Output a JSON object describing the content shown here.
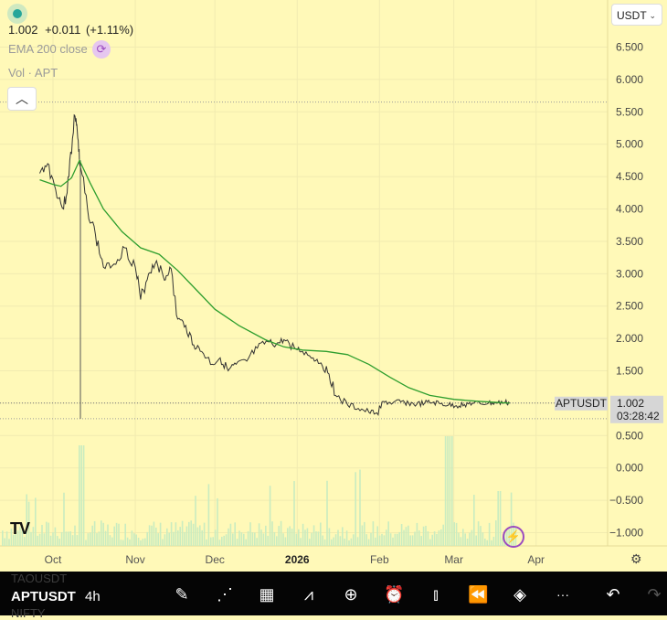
{
  "legend": {
    "price": "1.002",
    "change": "+0.011",
    "change_pct": "(+1.11%)",
    "ema_label": "EMA 200 close",
    "vol_label": "Vol · APT"
  },
  "currency": "USDT",
  "last_price_tag": {
    "symbol": "APTUSDT",
    "price": "1.002",
    "countdown": "03:28:42"
  },
  "colors": {
    "background": "#fff9b8",
    "price_line": "#333333",
    "ema_line": "#2e9e2e",
    "volume": "#bfe6b8",
    "toolbar": "#050505"
  },
  "chart_data": {
    "type": "line",
    "series": [
      {
        "name": "APTUSDT",
        "x": [
          "Sep 27",
          "Sep 30",
          "Oct 2",
          "Oct 5",
          "Oct 7",
          "Oct 9",
          "Oct 10",
          "Oct 11",
          "Oct 14",
          "Oct 17",
          "Oct 20",
          "Oct 24",
          "Oct 28",
          "Nov 1",
          "Nov 3",
          "Nov 6",
          "Nov 9",
          "Nov 12",
          "Nov 14",
          "Nov 17",
          "Nov 20",
          "Nov 23",
          "Nov 26",
          "Nov 30",
          "Dec 3",
          "Dec 6",
          "Dec 9",
          "Dec 13",
          "Dec 17",
          "Dec 21",
          "Dec 24",
          "Dec 27",
          "Dec 31",
          "Jan 3",
          "Jan 7",
          "Jan 10",
          "Jan 13",
          "Jan 16",
          "Jan 20",
          "Jan 24",
          "Jan 28",
          "Jan 31",
          "Feb 3",
          "Feb 6",
          "Feb 9",
          "Feb 12",
          "Feb 15",
          "Feb 18",
          "Feb 21",
          "Feb 24",
          "Feb 27",
          "Mar 2",
          "Mar 5",
          "Mar 8",
          "Mar 11",
          "Mar 14",
          "Mar 17",
          "Mar 20",
          "Mar 22"
        ],
        "values": [
          4.55,
          4.7,
          4.3,
          4.0,
          4.5,
          5.45,
          5.3,
          4.7,
          4.0,
          3.6,
          3.1,
          3.15,
          3.4,
          3.1,
          2.6,
          3.0,
          3.2,
          2.9,
          3.1,
          2.3,
          2.2,
          1.9,
          1.8,
          1.6,
          1.7,
          1.5,
          1.6,
          1.65,
          1.85,
          1.95,
          1.9,
          1.98,
          1.85,
          1.8,
          1.7,
          1.62,
          1.45,
          1.1,
          0.97,
          0.92,
          0.86,
          0.85,
          1.02,
          1.0,
          1.02,
          1.0,
          0.98,
          1.0,
          1.01,
          0.99,
          0.97,
          0.96,
          0.98,
          1.0,
          0.99,
          1.0,
          1.0,
          1.01,
          1.002
        ]
      },
      {
        "name": "EMA 200 close",
        "x": [
          "Sep 27",
          "Oct 1",
          "Oct 4",
          "Oct 8",
          "Oct 11",
          "Oct 15",
          "Oct 20",
          "Oct 27",
          "Nov 3",
          "Nov 10",
          "Nov 17",
          "Nov 24",
          "Dec 1",
          "Dec 10",
          "Dec 20",
          "Dec 27",
          "Jan 3",
          "Jan 12",
          "Jan 20",
          "Jan 28",
          "Feb 5",
          "Feb 12",
          "Feb 20",
          "Mar 1",
          "Mar 10",
          "Mar 18",
          "Mar 22"
        ],
        "values": [
          4.45,
          4.38,
          4.35,
          4.48,
          4.75,
          4.4,
          4.0,
          3.65,
          3.4,
          3.3,
          3.05,
          2.75,
          2.45,
          2.2,
          1.98,
          1.87,
          1.82,
          1.8,
          1.75,
          1.6,
          1.4,
          1.24,
          1.12,
          1.06,
          1.03,
          1.01,
          1.0
        ]
      }
    ],
    "x_ticks": [
      "Oct",
      "Nov",
      "Dec",
      "2026",
      "Feb",
      "Mar",
      "Apr"
    ],
    "y_ticks": [
      "6.500",
      "6.000",
      "5.500",
      "5.000",
      "4.500",
      "4.000",
      "3.500",
      "3.000",
      "2.500",
      "2.000",
      "1.500",
      "1.000",
      "0.500",
      "0.000",
      "−0.500",
      "−1.000"
    ],
    "ylim": [
      -1.1,
      6.7
    ],
    "grid": true,
    "legend": "top-left",
    "reference_lines": {
      "high": 5.65,
      "low": 0.76,
      "last": 1.002
    }
  },
  "toolbar": {
    "symbol": "APTUSDT",
    "interval": "4h",
    "ghost_prev": "TAOUSDT",
    "ghost_next": "NIFTY",
    "icons": [
      "pencil-icon",
      "indicators-icon",
      "layout-grid-icon",
      "compare-icon",
      "add-icon",
      "alert-icon",
      "candles-icon",
      "replay-icon",
      "layers-icon",
      "more-icon",
      "undo-icon",
      "redo-icon"
    ],
    "glyphs": [
      "✎",
      "⋰",
      "▦",
      "⩘",
      "⊕",
      "⏰",
      "⫾",
      "⏪",
      "◈",
      "···",
      "↶",
      "↷"
    ]
  },
  "logo": "TV"
}
